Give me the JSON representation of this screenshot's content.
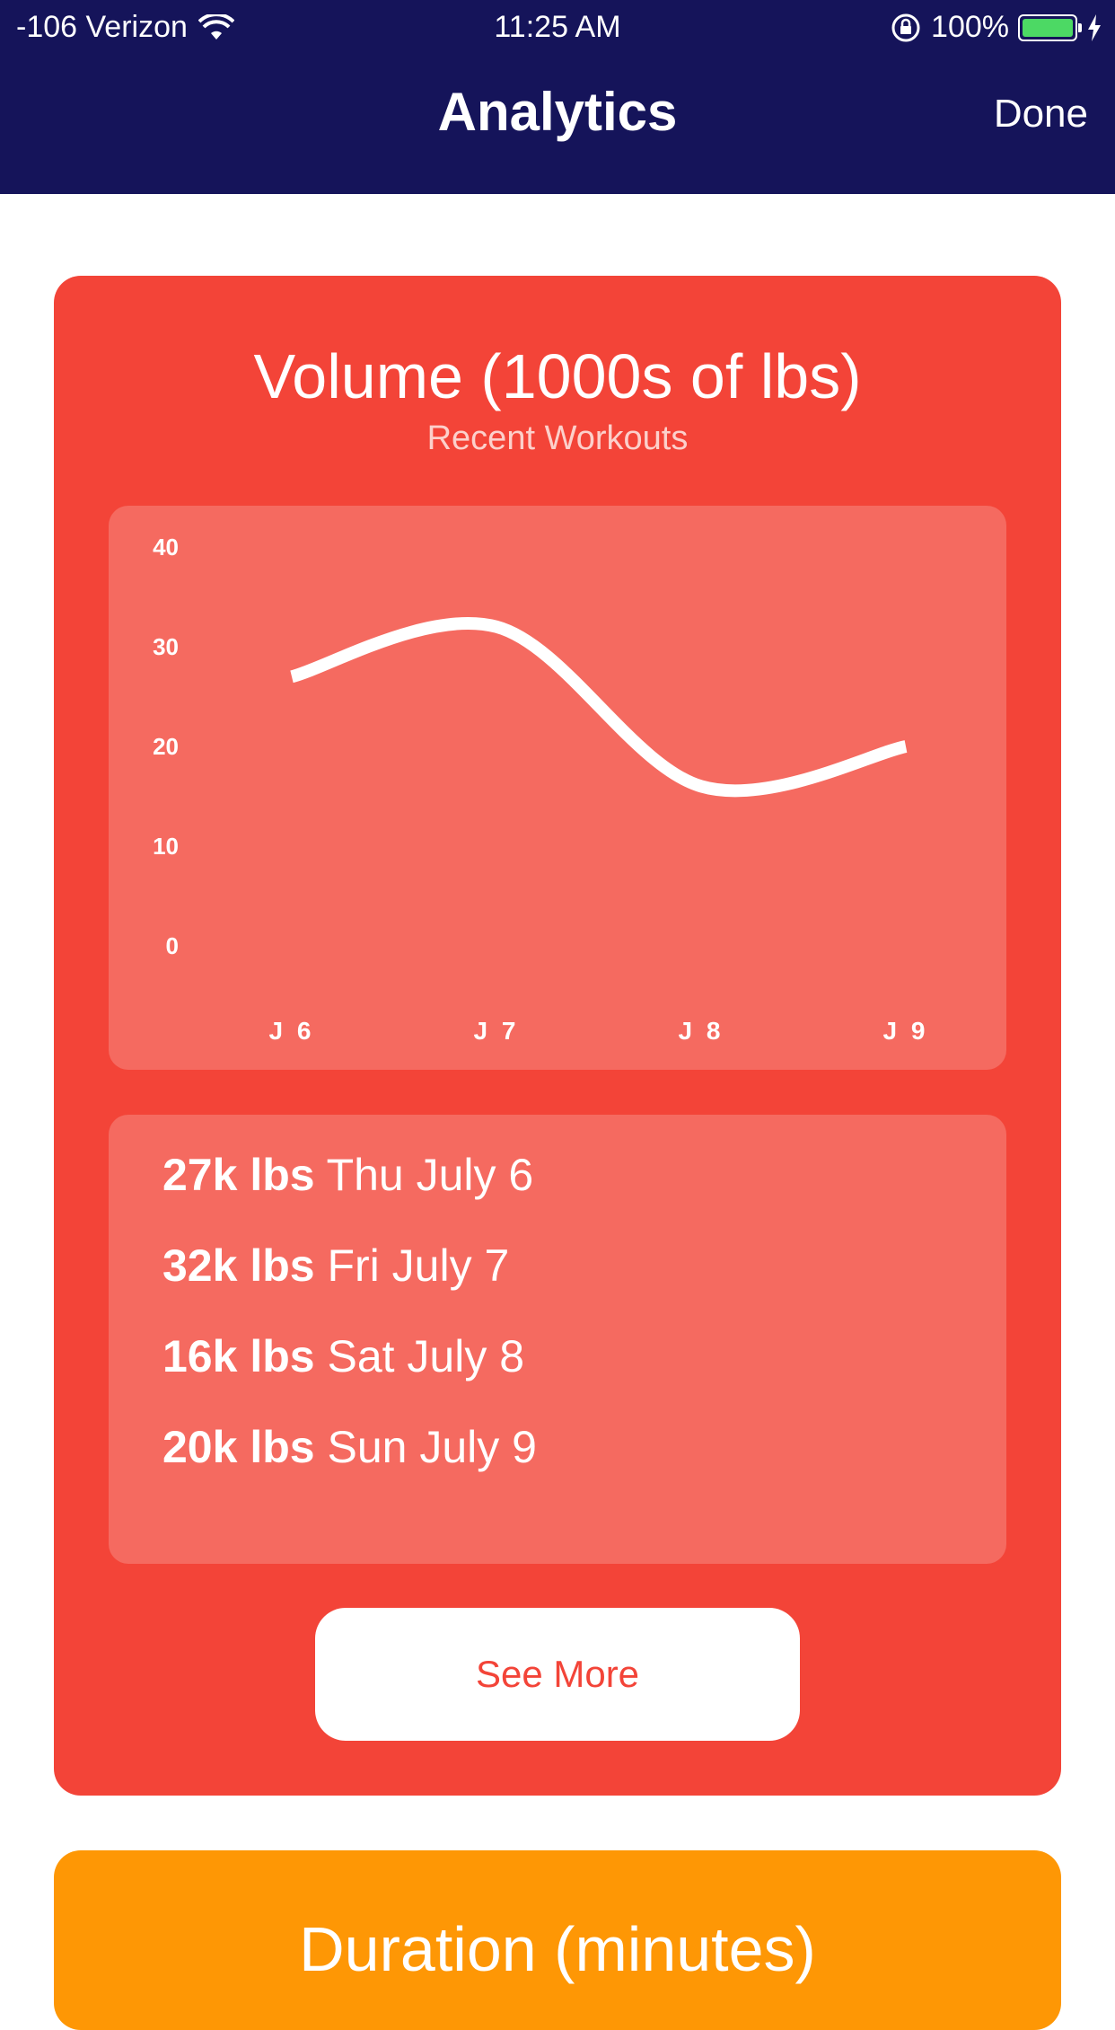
{
  "status_bar": {
    "carrier": "-106 Verizon",
    "time": "11:25 AM",
    "battery": "100%",
    "battery_color": "#4cd964"
  },
  "nav": {
    "title": "Analytics",
    "done_label": "Done",
    "background": "#15145a"
  },
  "volume_card": {
    "title": "Volume (1000s of lbs)",
    "subtitle": "Recent Workouts",
    "color": "#f34438",
    "see_more_label": "See More",
    "entries": [
      {
        "amount": "27k lbs",
        "date": "Thu July 6"
      },
      {
        "amount": "32k lbs",
        "date": "Fri July 7"
      },
      {
        "amount": "16k lbs",
        "date": "Sat July 8"
      },
      {
        "amount": "20k lbs",
        "date": "Sun July 9"
      }
    ]
  },
  "duration_card": {
    "title": "Duration (minutes)",
    "color": "#fe9705"
  },
  "chart_data": {
    "type": "line",
    "categories": [
      "J 6",
      "J 7",
      "J 8",
      "J 9"
    ],
    "series": [
      {
        "values": [
          27,
          32,
          16,
          20
        ]
      }
    ],
    "yticks": [
      0,
      10,
      20,
      30,
      40
    ],
    "ylim": [
      0,
      40
    ],
    "grid": false,
    "smooth": true
  }
}
